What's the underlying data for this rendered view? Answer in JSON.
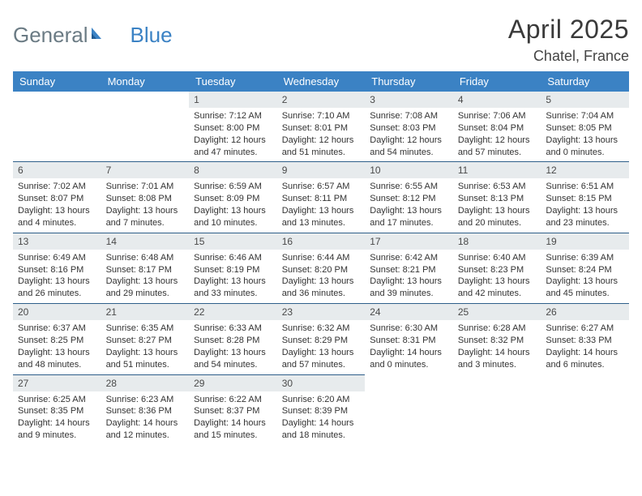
{
  "logo": {
    "text_a": "General",
    "text_b": "Blue"
  },
  "title": "April 2025",
  "location": "Chatel, France",
  "colors": {
    "header_bg": "#3b82c4",
    "header_text": "#ffffff",
    "daynum_bg": "#e7ebed",
    "row_divider": "#2f5f8a",
    "logo_gray": "#6b7b84",
    "logo_blue": "#3b82c4"
  },
  "weekdays": [
    "Sunday",
    "Monday",
    "Tuesday",
    "Wednesday",
    "Thursday",
    "Friday",
    "Saturday"
  ],
  "grid": [
    [
      null,
      null,
      {
        "n": "1",
        "sr": "7:12 AM",
        "ss": "8:00 PM",
        "dl": "12 hours and 47 minutes."
      },
      {
        "n": "2",
        "sr": "7:10 AM",
        "ss": "8:01 PM",
        "dl": "12 hours and 51 minutes."
      },
      {
        "n": "3",
        "sr": "7:08 AM",
        "ss": "8:03 PM",
        "dl": "12 hours and 54 minutes."
      },
      {
        "n": "4",
        "sr": "7:06 AM",
        "ss": "8:04 PM",
        "dl": "12 hours and 57 minutes."
      },
      {
        "n": "5",
        "sr": "7:04 AM",
        "ss": "8:05 PM",
        "dl": "13 hours and 0 minutes."
      }
    ],
    [
      {
        "n": "6",
        "sr": "7:02 AM",
        "ss": "8:07 PM",
        "dl": "13 hours and 4 minutes."
      },
      {
        "n": "7",
        "sr": "7:01 AM",
        "ss": "8:08 PM",
        "dl": "13 hours and 7 minutes."
      },
      {
        "n": "8",
        "sr": "6:59 AM",
        "ss": "8:09 PM",
        "dl": "13 hours and 10 minutes."
      },
      {
        "n": "9",
        "sr": "6:57 AM",
        "ss": "8:11 PM",
        "dl": "13 hours and 13 minutes."
      },
      {
        "n": "10",
        "sr": "6:55 AM",
        "ss": "8:12 PM",
        "dl": "13 hours and 17 minutes."
      },
      {
        "n": "11",
        "sr": "6:53 AM",
        "ss": "8:13 PM",
        "dl": "13 hours and 20 minutes."
      },
      {
        "n": "12",
        "sr": "6:51 AM",
        "ss": "8:15 PM",
        "dl": "13 hours and 23 minutes."
      }
    ],
    [
      {
        "n": "13",
        "sr": "6:49 AM",
        "ss": "8:16 PM",
        "dl": "13 hours and 26 minutes."
      },
      {
        "n": "14",
        "sr": "6:48 AM",
        "ss": "8:17 PM",
        "dl": "13 hours and 29 minutes."
      },
      {
        "n": "15",
        "sr": "6:46 AM",
        "ss": "8:19 PM",
        "dl": "13 hours and 33 minutes."
      },
      {
        "n": "16",
        "sr": "6:44 AM",
        "ss": "8:20 PM",
        "dl": "13 hours and 36 minutes."
      },
      {
        "n": "17",
        "sr": "6:42 AM",
        "ss": "8:21 PM",
        "dl": "13 hours and 39 minutes."
      },
      {
        "n": "18",
        "sr": "6:40 AM",
        "ss": "8:23 PM",
        "dl": "13 hours and 42 minutes."
      },
      {
        "n": "19",
        "sr": "6:39 AM",
        "ss": "8:24 PM",
        "dl": "13 hours and 45 minutes."
      }
    ],
    [
      {
        "n": "20",
        "sr": "6:37 AM",
        "ss": "8:25 PM",
        "dl": "13 hours and 48 minutes."
      },
      {
        "n": "21",
        "sr": "6:35 AM",
        "ss": "8:27 PM",
        "dl": "13 hours and 51 minutes."
      },
      {
        "n": "22",
        "sr": "6:33 AM",
        "ss": "8:28 PM",
        "dl": "13 hours and 54 minutes."
      },
      {
        "n": "23",
        "sr": "6:32 AM",
        "ss": "8:29 PM",
        "dl": "13 hours and 57 minutes."
      },
      {
        "n": "24",
        "sr": "6:30 AM",
        "ss": "8:31 PM",
        "dl": "14 hours and 0 minutes."
      },
      {
        "n": "25",
        "sr": "6:28 AM",
        "ss": "8:32 PM",
        "dl": "14 hours and 3 minutes."
      },
      {
        "n": "26",
        "sr": "6:27 AM",
        "ss": "8:33 PM",
        "dl": "14 hours and 6 minutes."
      }
    ],
    [
      {
        "n": "27",
        "sr": "6:25 AM",
        "ss": "8:35 PM",
        "dl": "14 hours and 9 minutes."
      },
      {
        "n": "28",
        "sr": "6:23 AM",
        "ss": "8:36 PM",
        "dl": "14 hours and 12 minutes."
      },
      {
        "n": "29",
        "sr": "6:22 AM",
        "ss": "8:37 PM",
        "dl": "14 hours and 15 minutes."
      },
      {
        "n": "30",
        "sr": "6:20 AM",
        "ss": "8:39 PM",
        "dl": "14 hours and 18 minutes."
      },
      null,
      null,
      null
    ]
  ],
  "labels": {
    "sunrise": "Sunrise: ",
    "sunset": "Sunset: ",
    "daylight": "Daylight: "
  }
}
